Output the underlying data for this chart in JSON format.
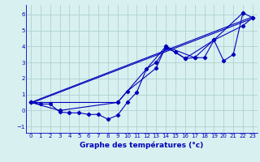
{
  "xlabel": "Graphe des températures (°c)",
  "background_color": "#d8f0f0",
  "grid_color": "#b0d0d0",
  "line_color": "#0000bb",
  "xlim": [
    -0.5,
    23.5
  ],
  "ylim": [
    -1.4,
    6.6
  ],
  "xticks": [
    0,
    1,
    2,
    3,
    4,
    5,
    6,
    7,
    8,
    9,
    10,
    11,
    12,
    13,
    14,
    15,
    16,
    17,
    18,
    19,
    20,
    21,
    22,
    23
  ],
  "yticks": [
    -1,
    0,
    1,
    2,
    3,
    4,
    5,
    6
  ],
  "series1_x": [
    0,
    1,
    2,
    3,
    4,
    5,
    6,
    7,
    8,
    9,
    10,
    11,
    12,
    13,
    14,
    15,
    16,
    17,
    18,
    19,
    20,
    21,
    22,
    23
  ],
  "series1_y": [
    0.5,
    0.4,
    0.4,
    -0.1,
    -0.15,
    -0.15,
    -0.25,
    -0.25,
    -0.55,
    -0.3,
    0.5,
    1.15,
    2.6,
    3.0,
    3.9,
    3.65,
    3.25,
    3.3,
    3.3,
    4.4,
    3.1,
    3.5,
    6.1,
    5.8
  ],
  "series2_x": [
    0,
    3,
    9,
    10,
    13,
    14,
    17,
    22
  ],
  "series2_y": [
    0.5,
    0.0,
    0.5,
    1.2,
    2.65,
    4.0,
    3.3,
    6.1
  ],
  "series3_x": [
    0,
    23
  ],
  "series3_y": [
    0.5,
    5.85
  ],
  "series4_x": [
    0,
    23
  ],
  "series4_y": [
    0.45,
    5.75
  ],
  "series5_x": [
    0,
    9,
    14,
    16,
    19,
    22,
    23
  ],
  "series5_y": [
    0.5,
    0.5,
    4.0,
    3.25,
    4.4,
    5.3,
    5.8
  ]
}
